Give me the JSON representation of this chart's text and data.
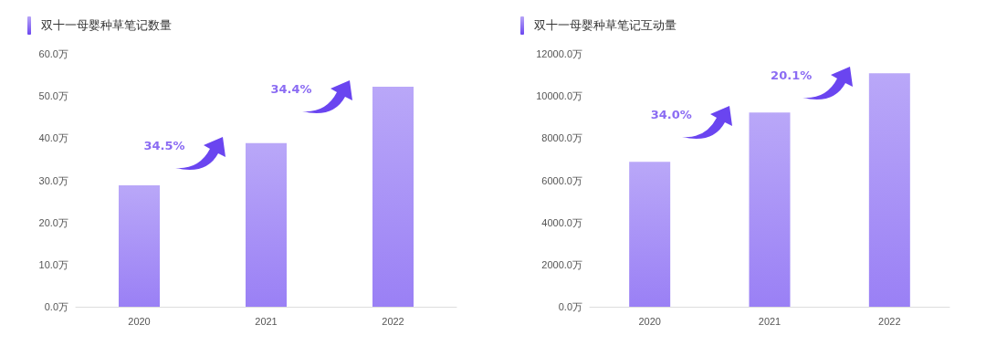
{
  "chart_data": [
    {
      "type": "bar",
      "title": "双十一母婴种草笔记数量",
      "categories": [
        "2020",
        "2021",
        "2022"
      ],
      "values": [
        28.8,
        38.8,
        52.2
      ],
      "color": "#9a80f5",
      "ylim": [
        0,
        60
      ],
      "yticks": [
        {
          "value": 0,
          "label": "0.0万"
        },
        {
          "value": 10,
          "label": "10.0万"
        },
        {
          "value": 20,
          "label": "20.0万"
        },
        {
          "value": 30,
          "label": "30.0万"
        },
        {
          "value": 40,
          "label": "40.0万"
        },
        {
          "value": 50,
          "label": "50.0万"
        },
        {
          "value": 60,
          "label": "60.0万"
        }
      ],
      "grid": false,
      "annotations": [
        "34.5%",
        "34.4%"
      ]
    },
    {
      "type": "bar",
      "title": "双十一母婴种草笔记互动量",
      "categories": [
        "2020",
        "2021",
        "2022"
      ],
      "values": [
        6880,
        9220,
        11080
      ],
      "color": "#9a80f5",
      "ylim": [
        0,
        12000
      ],
      "yticks": [
        {
          "value": 0,
          "label": "0.0万"
        },
        {
          "value": 2000,
          "label": "2000.0万"
        },
        {
          "value": 4000,
          "label": "4000.0万"
        },
        {
          "value": 6000,
          "label": "6000.0万"
        },
        {
          "value": 8000,
          "label": "8000.0万"
        },
        {
          "value": 10000,
          "label": "10000.0万"
        },
        {
          "value": 12000,
          "label": "12000.0万"
        }
      ],
      "grid": false,
      "annotations": [
        "34.0%",
        "20.1%"
      ]
    }
  ]
}
